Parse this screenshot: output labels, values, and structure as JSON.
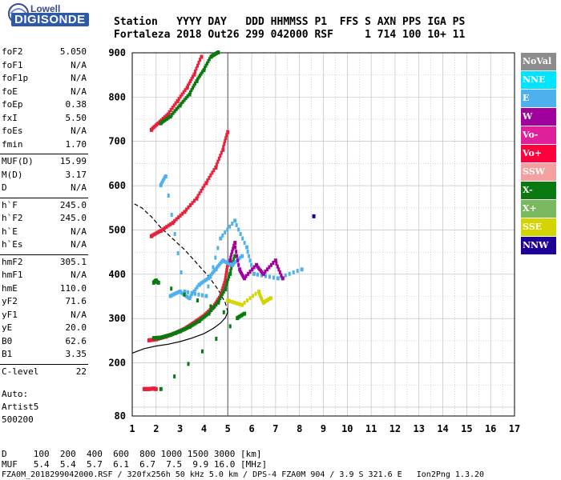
{
  "logo": {
    "brand_top": "Lowell",
    "brand_main": "DIGISONDE"
  },
  "header": {
    "line1": "Station   YYYY DAY   DDD HHMMSS P1  FFS S AXN PPS IGA PS",
    "line2": "Fortaleza 2018 Out26 299 042000 RSF     1 714 100 10+ 11"
  },
  "params": [
    {
      "name": "foF2",
      "value": "5.050"
    },
    {
      "name": "foF1",
      "value": "N/A"
    },
    {
      "name": "foF1p",
      "value": "N/A"
    },
    {
      "name": "foE",
      "value": "N/A"
    },
    {
      "name": "foEp",
      "value": "0.38"
    },
    {
      "name": "fxI",
      "value": "5.50"
    },
    {
      "name": "foEs",
      "value": "N/A"
    },
    {
      "name": "fmin",
      "value": "1.70"
    },
    {
      "name": "MUF(D)",
      "value": "15.99"
    },
    {
      "name": "M(D)",
      "value": "3.17"
    },
    {
      "name": "D",
      "value": "N/A"
    },
    {
      "name": "h`F",
      "value": "245.0"
    },
    {
      "name": "h`F2",
      "value": "245.0"
    },
    {
      "name": "h`E",
      "value": "N/A"
    },
    {
      "name": "h`Es",
      "value": "N/A"
    },
    {
      "name": "hmF2",
      "value": "305.1"
    },
    {
      "name": "hmF1",
      "value": "N/A"
    },
    {
      "name": "hmE",
      "value": "110.0"
    },
    {
      "name": "yF2",
      "value": "71.6"
    },
    {
      "name": "yF1",
      "value": "N/A"
    },
    {
      "name": "yE",
      "value": "20.0"
    },
    {
      "name": "B0",
      "value": "62.6"
    },
    {
      "name": "B1",
      "value": "3.35"
    },
    {
      "name": "C-level",
      "value": "22"
    }
  ],
  "auto": {
    "line1": "Auto:",
    "line2": "Artist5",
    "line3": "500200"
  },
  "legend": [
    {
      "label": "NoVal",
      "color": "#8c8c8c"
    },
    {
      "label": "NNE",
      "color": "#00e5ff"
    },
    {
      "label": "E",
      "color": "#4fb0ee"
    },
    {
      "label": "W",
      "color": "#a0009c"
    },
    {
      "label": "Vo-",
      "color": "#e0209a"
    },
    {
      "label": "Vo+",
      "color": "#ff003c"
    },
    {
      "label": "SSW",
      "color": "#f4a0a0"
    },
    {
      "label": "X-",
      "color": "#0a7a10"
    },
    {
      "label": "X+",
      "color": "#7ab860"
    },
    {
      "label": "SSE",
      "color": "#d4d400"
    },
    {
      "label": "NNW",
      "color": "#1e0096"
    }
  ],
  "footer": {
    "line1": "D     100  200  400  600  800 1000 1500 3000 [km]",
    "line2": "MUF   5.4  5.4  5.7  6.1  6.7  7.5  9.9 16.0 [MHz]",
    "line3": "FZA0M_2018299042000.RSF / 320fx256h 50 kHz 5.0 km / DPS-4 FZA0M 904 / 3.9 S 321.6 E   Ion2Png 1.3.20"
  },
  "chart_data": {
    "type": "scatter",
    "title": "",
    "xlabel": "",
    "ylabel": "",
    "xlim": [
      1,
      17
    ],
    "ylim": [
      80,
      900
    ],
    "x_ticks": [
      1,
      2,
      3,
      4,
      5,
      6,
      7,
      8,
      9,
      10,
      11,
      12,
      13,
      14,
      15,
      16,
      17
    ],
    "y_ticks": [
      80,
      200,
      300,
      400,
      500,
      600,
      700,
      800,
      900
    ],
    "vline_x": 5.0,
    "series": [
      {
        "name": "O-trace",
        "color": "#e8203a",
        "x": [
          1.7,
          2.0,
          2.4,
          2.8,
          3.2,
          3.6,
          4.0,
          4.4,
          4.7,
          4.9,
          5.0
        ],
        "y": [
          250,
          252,
          258,
          266,
          276,
          290,
          305,
          325,
          350,
          385,
          420
        ]
      },
      {
        "name": "X-trace",
        "color": "#0a7a10",
        "x": [
          1.9,
          2.2,
          2.6,
          3.0,
          3.4,
          3.8,
          4.2,
          4.6,
          4.9,
          5.1,
          5.3
        ],
        "y": [
          255,
          256,
          262,
          270,
          280,
          293,
          310,
          335,
          365,
          400,
          440
        ]
      },
      {
        "name": "2hop-trace",
        "color": "#e8203a",
        "x": [
          1.8,
          2.2,
          2.7,
          3.2,
          3.7,
          4.1,
          4.5,
          4.8,
          5.0
        ],
        "y": [
          485,
          497,
          515,
          540,
          570,
          605,
          640,
          680,
          720
        ]
      },
      {
        "name": "3hop-trace",
        "color": "#e8203a",
        "x": [
          1.8,
          2.1,
          2.5,
          2.9,
          3.3,
          3.6,
          3.9
        ],
        "y": [
          725,
          740,
          760,
          790,
          820,
          850,
          890
        ]
      },
      {
        "name": "3hop-x",
        "color": "#0a7a10",
        "x": [
          2.2,
          2.6,
          3.0,
          3.4,
          3.7,
          4.0,
          4.3,
          4.6
        ],
        "y": [
          740,
          755,
          780,
          805,
          835,
          860,
          890,
          900
        ]
      },
      {
        "name": "E-spread",
        "color": "#4fb0ee",
        "x": [
          2.6,
          3.0,
          3.4,
          3.8,
          4.2,
          4.5,
          4.8,
          5.2,
          5.6
        ],
        "y": [
          350,
          360,
          345,
          375,
          390,
          410,
          430,
          420,
          440
        ]
      },
      {
        "name": "E-scatter",
        "color": "#4fb0ee",
        "x": [
          2.2,
          2.4,
          3.2,
          4.1,
          4.7,
          5.3,
          5.8,
          6.1,
          7.1,
          8.1
        ],
        "y": [
          600,
          620,
          360,
          350,
          480,
          520,
          460,
          400,
          390,
          410
        ]
      },
      {
        "name": "W-scatter",
        "color": "#a0009c",
        "x": [
          5.1,
          5.3,
          5.5,
          5.7,
          6.2,
          6.5,
          7.0,
          7.3
        ],
        "y": [
          430,
          470,
          410,
          390,
          420,
          400,
          430,
          390
        ]
      },
      {
        "name": "SSE-scatter",
        "color": "#d4d400",
        "x": [
          5.0,
          5.6,
          6.3,
          6.5,
          6.8
        ],
        "y": [
          340,
          330,
          360,
          335,
          345
        ]
      },
      {
        "name": "X--scatter",
        "color": "#0a7a10",
        "x": [
          1.9,
          2.0,
          2.1,
          5.4,
          5.7,
          2.2
        ],
        "y": [
          380,
          385,
          380,
          300,
          310,
          140
        ]
      },
      {
        "name": "NNW-scatter",
        "color": "#1e0096",
        "x": [
          8.6
        ],
        "y": [
          530
        ]
      },
      {
        "name": "low-echo",
        "color": "#e8203a",
        "x": [
          1.5,
          1.7,
          1.9,
          2.0
        ],
        "y": [
          140,
          140,
          141,
          140
        ]
      }
    ],
    "profile_line": {
      "x": [
        1.0,
        1.5,
        2.0,
        2.5,
        3.0,
        3.5,
        4.0,
        4.4,
        4.7,
        4.9,
        5.0,
        4.9,
        4.6,
        4.2,
        3.7,
        3.2,
        2.7,
        2.2,
        1.8,
        1.4,
        1.05
      ],
      "y": [
        222,
        232,
        238,
        242,
        248,
        256,
        266,
        278,
        290,
        302,
        315,
        335,
        365,
        395,
        425,
        455,
        480,
        505,
        530,
        550,
        560
      ]
    },
    "profile_style": "solid-then-dashed"
  }
}
